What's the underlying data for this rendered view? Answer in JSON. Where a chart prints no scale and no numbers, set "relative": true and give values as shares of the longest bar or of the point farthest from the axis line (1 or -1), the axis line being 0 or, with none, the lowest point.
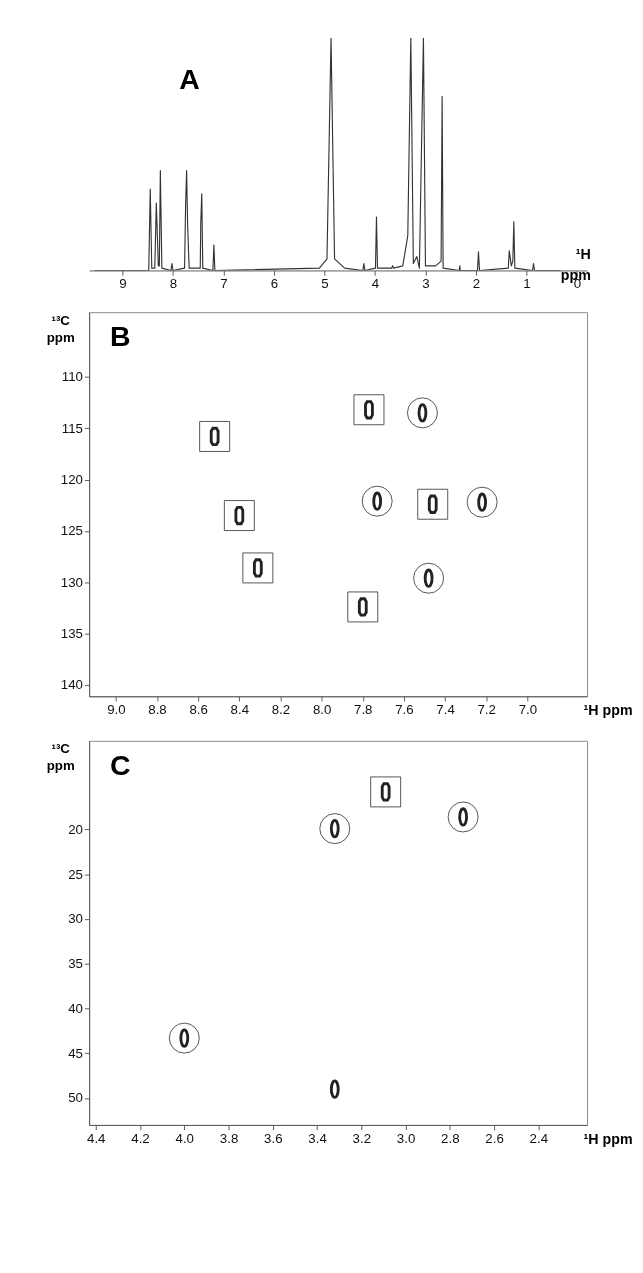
{
  "chart_data": [
    {
      "type": "line",
      "relative": true,
      "xlabel": "¹H ppm",
      "annotations": [
        "A"
      ],
      "xlim": [
        9.66,
        -0.2
      ],
      "xticks": [
        9,
        8,
        7,
        6,
        5,
        4,
        3,
        2,
        1,
        0
      ],
      "series": [
        {
          "color": "#333333",
          "x": [
            9.55,
            8.48,
            8.45,
            8.42,
            8.36,
            8.33,
            8.29,
            8.27,
            8.25,
            8.22,
            8.04,
            8.02,
            8.0,
            7.77,
            7.75,
            7.73,
            7.71,
            7.68,
            7.46,
            7.45,
            7.43,
            7.41,
            7.21,
            7.19,
            7.17,
            5.1,
            4.95,
            4.87,
            4.8,
            4.6,
            4.24,
            4.22,
            4.2,
            3.99,
            3.97,
            3.95,
            3.67,
            3.65,
            3.63,
            3.45,
            3.41,
            3.35,
            3.29,
            3.24,
            3.17,
            3.12,
            3.04,
            3.0,
            2.8,
            2.69,
            2.67,
            2.65,
            2.33,
            2.32,
            2.31,
            1.97,
            1.95,
            1.93,
            1.36,
            1.34,
            1.3,
            1.27,
            1.25,
            1.23,
            0.88,
            0.86,
            0.84,
            0.32
          ],
          "values": [
            0,
            0,
            0.35,
            0.01,
            0.01,
            0.29,
            0.02,
            0.02,
            0.43,
            0.01,
            0,
            0.03,
            0,
            0.01,
            0.28,
            0.43,
            0.2,
            0.01,
            0.01,
            0.2,
            0.33,
            0.01,
            0,
            0.11,
            0,
            0.01,
            0.05,
            1,
            0.05,
            0.01,
            0,
            0.03,
            0,
            0.01,
            0.23,
            0.01,
            0.01,
            0.02,
            0.01,
            0.02,
            0.07,
            0.15,
            1,
            0.03,
            0.06,
            0.01,
            1,
            0.02,
            0.02,
            0.04,
            0.75,
            0.01,
            0,
            0.02,
            0,
            0,
            0.08,
            0,
            0.01,
            0.085,
            0.02,
            0.04,
            0.21,
            0.01,
            0,
            0.03,
            0,
            0
          ]
        }
      ]
    },
    {
      "type": "scatter",
      "xlabel": "¹H ppm",
      "ylabel": "¹³C ppm",
      "annotations": [
        "B"
      ],
      "xlim": [
        9.13,
        6.71
      ],
      "ylim": [
        141.1,
        103.7
      ],
      "xticks": [
        {
          "value": 9,
          "label": "9.0"
        },
        8.8,
        8.6,
        8.4,
        8.2,
        {
          "value": 8,
          "label": "8.0"
        },
        7.8,
        7.6,
        7.4,
        7.2,
        {
          "value": 7,
          "label": "7.0"
        }
      ],
      "yticks": [
        110,
        115,
        120,
        125,
        130,
        135,
        140
      ],
      "series": [
        {
          "color": "#222222",
          "marker": "square",
          "x": [
            8.52,
            8.4,
            8.31,
            7.77,
            7.8,
            7.46
          ],
          "values": [
            115.8,
            123.5,
            128.6,
            113.2,
            132.4,
            122.4
          ]
        },
        {
          "color": "#222222",
          "marker": "circle",
          "x": [
            7.51,
            7.73,
            7.22,
            7.48
          ],
          "values": [
            113.5,
            122.1,
            122.2,
            129.6
          ]
        }
      ]
    },
    {
      "type": "scatter",
      "xlabel": "¹H ppm",
      "ylabel": "¹³C ppm",
      "annotations": [
        "C"
      ],
      "xlim": [
        4.43,
        2.18
      ],
      "ylim": [
        53,
        10.1
      ],
      "xticks": [
        4.4,
        4.2,
        {
          "value": 4,
          "label": "4.0"
        },
        3.8,
        3.6,
        3.4,
        3.2,
        {
          "value": 3,
          "label": "3.0"
        },
        2.8,
        2.6,
        2.4
      ],
      "yticks": [
        20,
        25,
        30,
        35,
        40,
        45,
        50
      ],
      "series": [
        {
          "color": "#222222",
          "marker": "square",
          "x": [
            3.09
          ],
          "values": [
            15.8
          ]
        },
        {
          "color": "#222222",
          "marker": "circle",
          "x": [
            3.32,
            2.74,
            4.0
          ],
          "values": [
            19.9,
            18.6,
            43.3
          ]
        },
        {
          "color": "#222222",
          "x": [
            3.32
          ],
          "values": [
            49.0
          ]
        }
      ]
    }
  ]
}
